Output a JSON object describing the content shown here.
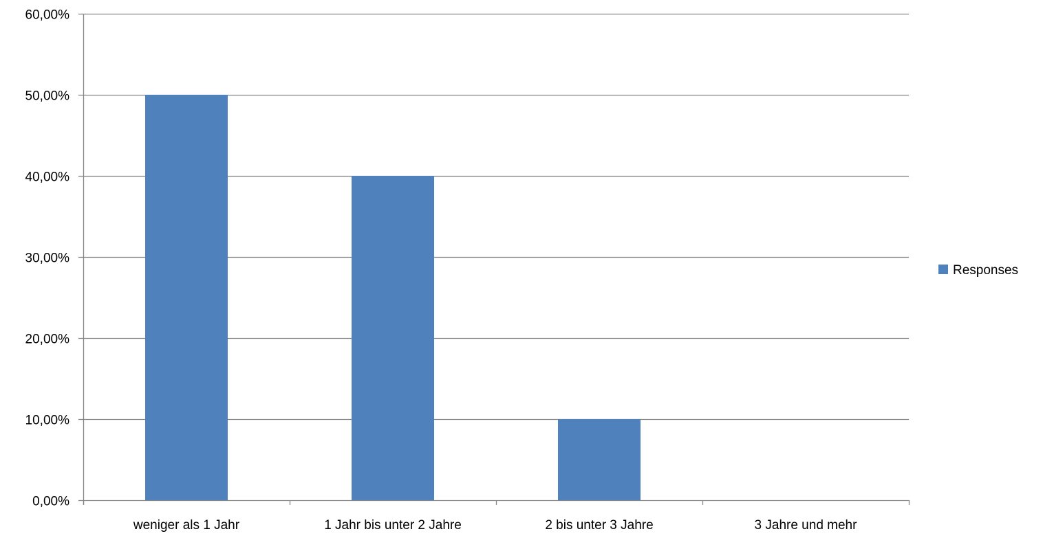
{
  "chart_data": {
    "type": "bar",
    "categories": [
      "weniger als 1 Jahr",
      "1 Jahr bis unter 2 Jahre",
      "2 bis unter 3 Jahre",
      "3 Jahre und mehr"
    ],
    "series": [
      {
        "name": "Responses",
        "values": [
          50,
          40,
          10,
          0
        ],
        "color": "#4F81BD"
      }
    ],
    "ylim": [
      0,
      60
    ],
    "yticks": [
      0,
      10,
      20,
      30,
      40,
      50,
      60
    ],
    "ytick_labels": [
      "0,00%",
      "10,00%",
      "20,00%",
      "30,00%",
      "40,00%",
      "50,00%",
      "60,00%"
    ],
    "grid": true,
    "gridline_color": "#868686",
    "legend_position": "right"
  }
}
